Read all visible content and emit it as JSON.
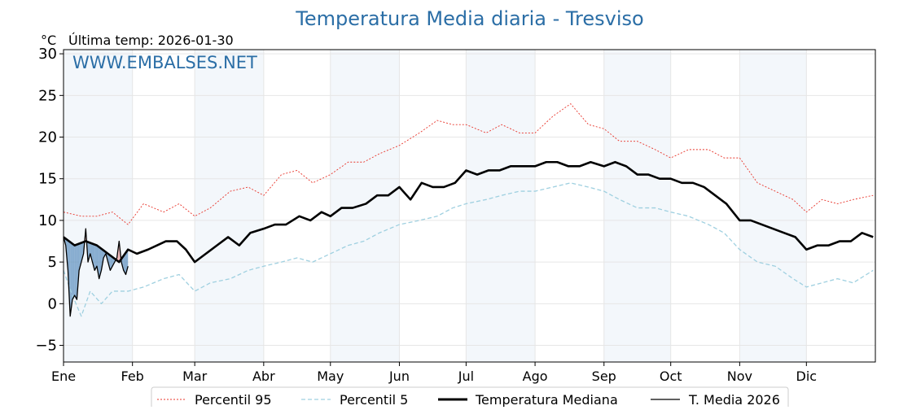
{
  "title": "Temperatura Media diaria - Tresviso",
  "unit_label": "°C",
  "last_temp_label": "Última temp: 2026-01-30",
  "watermark": "WWW.EMBALSES.NET",
  "colors": {
    "title": "#2b6ea6",
    "p95": "#e8352b",
    "p5": "#9fd0e0",
    "median": "#000000",
    "current": "#000000",
    "above_fill": "#f2b3b3",
    "below_fill": "#4f86b8",
    "band": "#f3f7fb"
  },
  "chart_data": {
    "type": "line",
    "title": "Temperatura Media diaria - Tresviso",
    "xlabel": "",
    "ylabel": "°C",
    "ylim": [
      -7,
      30.5
    ],
    "xlim": [
      0,
      365
    ],
    "yticks": [
      -5,
      0,
      5,
      10,
      15,
      20,
      25,
      30
    ],
    "month_labels": [
      "Ene",
      "Feb",
      "Mar",
      "Abr",
      "May",
      "Jun",
      "Jul",
      "Ago",
      "Sep",
      "Oct",
      "Nov",
      "Dic"
    ],
    "month_start_days": [
      0,
      31,
      59,
      90,
      120,
      151,
      181,
      212,
      243,
      273,
      304,
      334
    ],
    "grid": true,
    "legend_position": "bottom",
    "series": [
      {
        "name": "Percentil 95",
        "style": "dotted",
        "x": [
          0,
          8,
          15,
          22,
          29,
          36,
          45,
          52,
          59,
          66,
          75,
          83,
          90,
          98,
          105,
          112,
          120,
          128,
          135,
          142,
          151,
          160,
          168,
          175,
          181,
          190,
          197,
          205,
          212,
          220,
          228,
          236,
          243,
          250,
          258,
          266,
          273,
          281,
          290,
          297,
          304,
          312,
          320,
          328,
          334,
          341,
          348,
          355,
          364
        ],
        "y": [
          11,
          10.5,
          10.5,
          11,
          9.5,
          12,
          11,
          12,
          10.5,
          11.5,
          13.5,
          14,
          13,
          15.5,
          16,
          14.5,
          15.5,
          17,
          17,
          18,
          19,
          20.5,
          22,
          21.5,
          21.5,
          20.5,
          21.5,
          20.5,
          20.5,
          22.5,
          24,
          21.5,
          21,
          19.5,
          19.5,
          18.5,
          17.5,
          18.5,
          18.5,
          17.5,
          17.5,
          14.5,
          13.5,
          12.5,
          11,
          12.5,
          12,
          12.5,
          13
        ]
      },
      {
        "name": "Percentil 5",
        "style": "dashed",
        "x": [
          0,
          4,
          8,
          12,
          17,
          22,
          29,
          36,
          45,
          52,
          59,
          66,
          75,
          83,
          90,
          98,
          105,
          112,
          120,
          128,
          135,
          142,
          151,
          160,
          168,
          175,
          181,
          190,
          197,
          205,
          212,
          220,
          228,
          236,
          243,
          250,
          258,
          266,
          273,
          281,
          290,
          297,
          304,
          312,
          320,
          328,
          334,
          341,
          348,
          355,
          364
        ],
        "y": [
          4,
          1,
          -1.5,
          1.5,
          0,
          1.5,
          1.5,
          2,
          3,
          3.5,
          1.5,
          2.5,
          3,
          4,
          4.5,
          5,
          5.5,
          5,
          6,
          7,
          7.5,
          8.5,
          9.5,
          10,
          10.5,
          11.5,
          12,
          12.5,
          13,
          13.5,
          13.5,
          14,
          14.5,
          14,
          13.5,
          12.5,
          11.5,
          11.5,
          11,
          10.5,
          9.5,
          8.5,
          6.5,
          5,
          4.5,
          3,
          2,
          2.5,
          3,
          2.5,
          4
        ]
      },
      {
        "name": "Temperatura Mediana",
        "style": "solid-thick",
        "x": [
          0,
          5,
          10,
          15,
          20,
          25,
          29,
          33,
          38,
          42,
          46,
          51,
          55,
          59,
          64,
          69,
          74,
          79,
          84,
          90,
          95,
          100,
          106,
          111,
          116,
          120,
          125,
          130,
          136,
          141,
          146,
          151,
          156,
          161,
          166,
          171,
          176,
          181,
          186,
          191,
          196,
          201,
          206,
          212,
          217,
          222,
          227,
          232,
          237,
          243,
          248,
          253,
          258,
          263,
          268,
          273,
          278,
          283,
          288,
          293,
          298,
          304,
          309,
          314,
          319,
          324,
          329,
          334,
          339,
          344,
          349,
          354,
          359,
          364
        ],
        "y": [
          8,
          7,
          7.5,
          7,
          6,
          5,
          6.5,
          6,
          6.5,
          7,
          7.5,
          7.5,
          6.5,
          5,
          6,
          7,
          8,
          7,
          8.5,
          9,
          9.5,
          9.5,
          10.5,
          10,
          11,
          10.5,
          11.5,
          11.5,
          12,
          13,
          13,
          14,
          12.5,
          14.5,
          14,
          14,
          14.5,
          16,
          15.5,
          16,
          16,
          16.5,
          16.5,
          16.5,
          17,
          17,
          16.5,
          16.5,
          17,
          16.5,
          17,
          16.5,
          15.5,
          15.5,
          15,
          15,
          14.5,
          14.5,
          14,
          13,
          12,
          10,
          10,
          9.5,
          9,
          8.5,
          8,
          6.5,
          7,
          7,
          7.5,
          7.5,
          8.5,
          8
        ]
      },
      {
        "name": "T. Media 2026",
        "style": "solid-thin",
        "x": [
          0,
          1,
          2,
          3,
          4,
          5,
          6,
          7,
          8,
          9,
          10,
          11,
          12,
          13,
          14,
          15,
          16,
          17,
          18,
          19,
          20,
          21,
          22,
          23,
          24,
          25,
          26,
          27,
          28,
          29
        ],
        "y": [
          8,
          7,
          4,
          -1.5,
          0.5,
          1,
          0.5,
          4,
          5,
          6,
          9,
          5,
          6,
          5,
          4,
          4.5,
          3,
          4,
          5.5,
          6,
          5,
          4,
          4.5,
          5,
          5.5,
          7.5,
          5,
          4,
          3.5,
          4.5
        ]
      }
    ]
  },
  "legend": {
    "items": [
      {
        "label": "Percentil 95"
      },
      {
        "label": "Percentil 5"
      },
      {
        "label": "Temperatura Mediana"
      },
      {
        "label": "T. Media 2026"
      }
    ]
  }
}
